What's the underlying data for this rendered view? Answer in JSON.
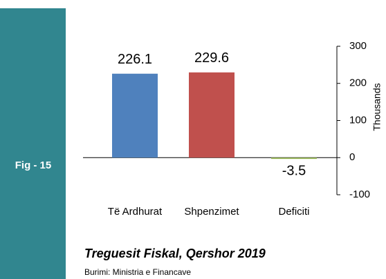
{
  "chart_data": {
    "type": "bar",
    "figure_label": "Fig - 15",
    "title": "Treguesit Fiskal, Qershor 2019",
    "source": "Burimi: Ministria e Financave",
    "y_label": "Thousands",
    "categories": [
      "Të Ardhurat",
      "Shpenzimet",
      "Deficiti"
    ],
    "values": [
      226.1,
      229.6,
      -3.5
    ],
    "colors": [
      "#4f81bd",
      "#c0504d",
      "#9bbb59"
    ],
    "ylim": [
      -100,
      300
    ],
    "yticks": [
      -100,
      0,
      100,
      200,
      300
    ],
    "y_axis_side": "right",
    "grid": false
  }
}
